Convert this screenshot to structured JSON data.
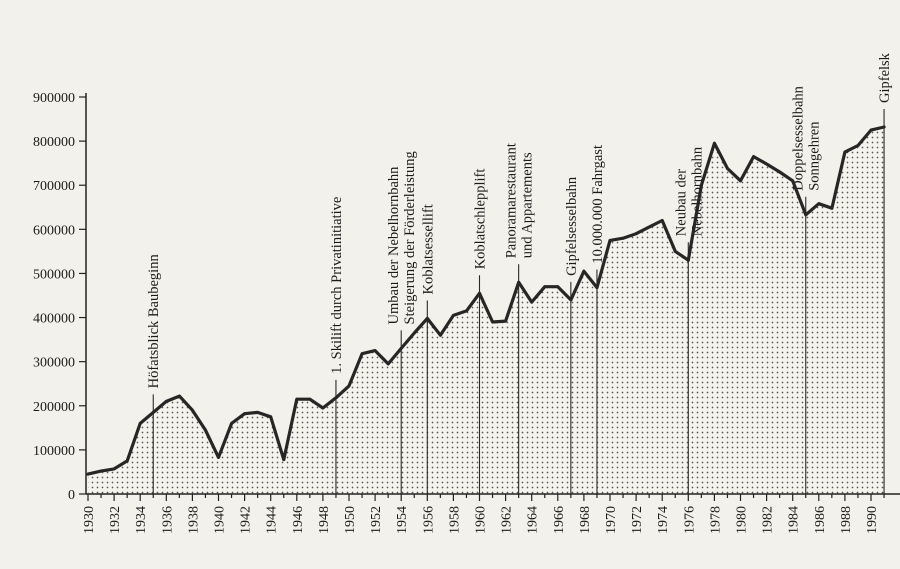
{
  "chart_data": {
    "type": "area",
    "title": "",
    "xlabel": "",
    "ylabel": "",
    "x": [
      1930,
      1931,
      1932,
      1933,
      1934,
      1935,
      1936,
      1937,
      1938,
      1939,
      1940,
      1941,
      1942,
      1943,
      1944,
      1945,
      1946,
      1947,
      1948,
      1949,
      1950,
      1951,
      1952,
      1953,
      1954,
      1955,
      1956,
      1957,
      1958,
      1959,
      1960,
      1961,
      1962,
      1963,
      1964,
      1965,
      1966,
      1967,
      1968,
      1969,
      1970,
      1971,
      1972,
      1973,
      1974,
      1975,
      1976,
      1977,
      1978,
      1979,
      1980,
      1981,
      1982,
      1983,
      1984,
      1985,
      1986,
      1987,
      1988,
      1989,
      1990,
      1991
    ],
    "series": [
      {
        "values": [
          45000,
          52000,
          57000,
          75000,
          160000,
          185000,
          210000,
          222000,
          190000,
          145000,
          83000,
          160000,
          182000,
          185000,
          175000,
          78000,
          215000,
          215000,
          195000,
          218000,
          245000,
          318000,
          325000,
          295000,
          330000,
          365000,
          398000,
          360000,
          405000,
          415000,
          455000,
          390000,
          392000,
          480000,
          435000,
          470000,
          470000,
          440000,
          505000,
          468000,
          575000,
          580000,
          590000,
          605000,
          620000,
          550000,
          530000,
          700000,
          795000,
          738000,
          710000,
          765000,
          748000,
          730000,
          710000,
          633000,
          658000,
          648000,
          775000,
          790000,
          825000,
          832000
        ]
      }
    ],
    "x_ticks": [
      "1930",
      "1932",
      "1934",
      "1936",
      "1938",
      "1940",
      "1942",
      "1944",
      "1946",
      "1948",
      "1950",
      "1952",
      "1954",
      "1956",
      "1958",
      "1960",
      "1962",
      "1964",
      "1966",
      "1968",
      "1970",
      "1972",
      "1974",
      "1976",
      "1978",
      "1980",
      "1982",
      "1984",
      "1986",
      "1988",
      "1990"
    ],
    "y_ticks": [
      "0",
      "100000",
      "200000",
      "300000",
      "400000",
      "500000",
      "600000",
      "700000",
      "800000",
      "900000"
    ],
    "ylim": [
      0,
      900000
    ],
    "xlim": [
      1930,
      1991
    ],
    "grid": false,
    "legend": "none",
    "annotations": [
      {
        "year": 1935,
        "lines": [
          "Höfatsblick Baubeginn"
        ]
      },
      {
        "year": 1949,
        "lines": [
          "1. Skilift durch Privatinitiative"
        ]
      },
      {
        "year": 1954,
        "lines": [
          "Umbau der Nebelhornbahn",
          "Steigerung der Förderleistung"
        ]
      },
      {
        "year": 1956,
        "lines": [
          "Koblatsessellift"
        ]
      },
      {
        "year": 1960,
        "lines": [
          "Koblatschlepplift"
        ]
      },
      {
        "year": 1963,
        "lines": [
          "Panoramarestaurant",
          "und Appartements"
        ]
      },
      {
        "year": 1967,
        "lines": [
          "Gipfelsesselbahn"
        ]
      },
      {
        "year": 1969,
        "lines": [
          "10.000.000 Fahrgast"
        ]
      },
      {
        "year": 1976,
        "lines": [
          "Neubau der",
          "Nebelhornbahn"
        ]
      },
      {
        "year": 1985,
        "lines": [
          "Doppelsesselbahn",
          "Sonngehren"
        ]
      },
      {
        "year": 1991,
        "lines": [
          "Gipfelsk"
        ]
      }
    ],
    "colors": {
      "line": "#262626",
      "fill_dots": "#555555",
      "background": "#f3f1ec"
    }
  }
}
